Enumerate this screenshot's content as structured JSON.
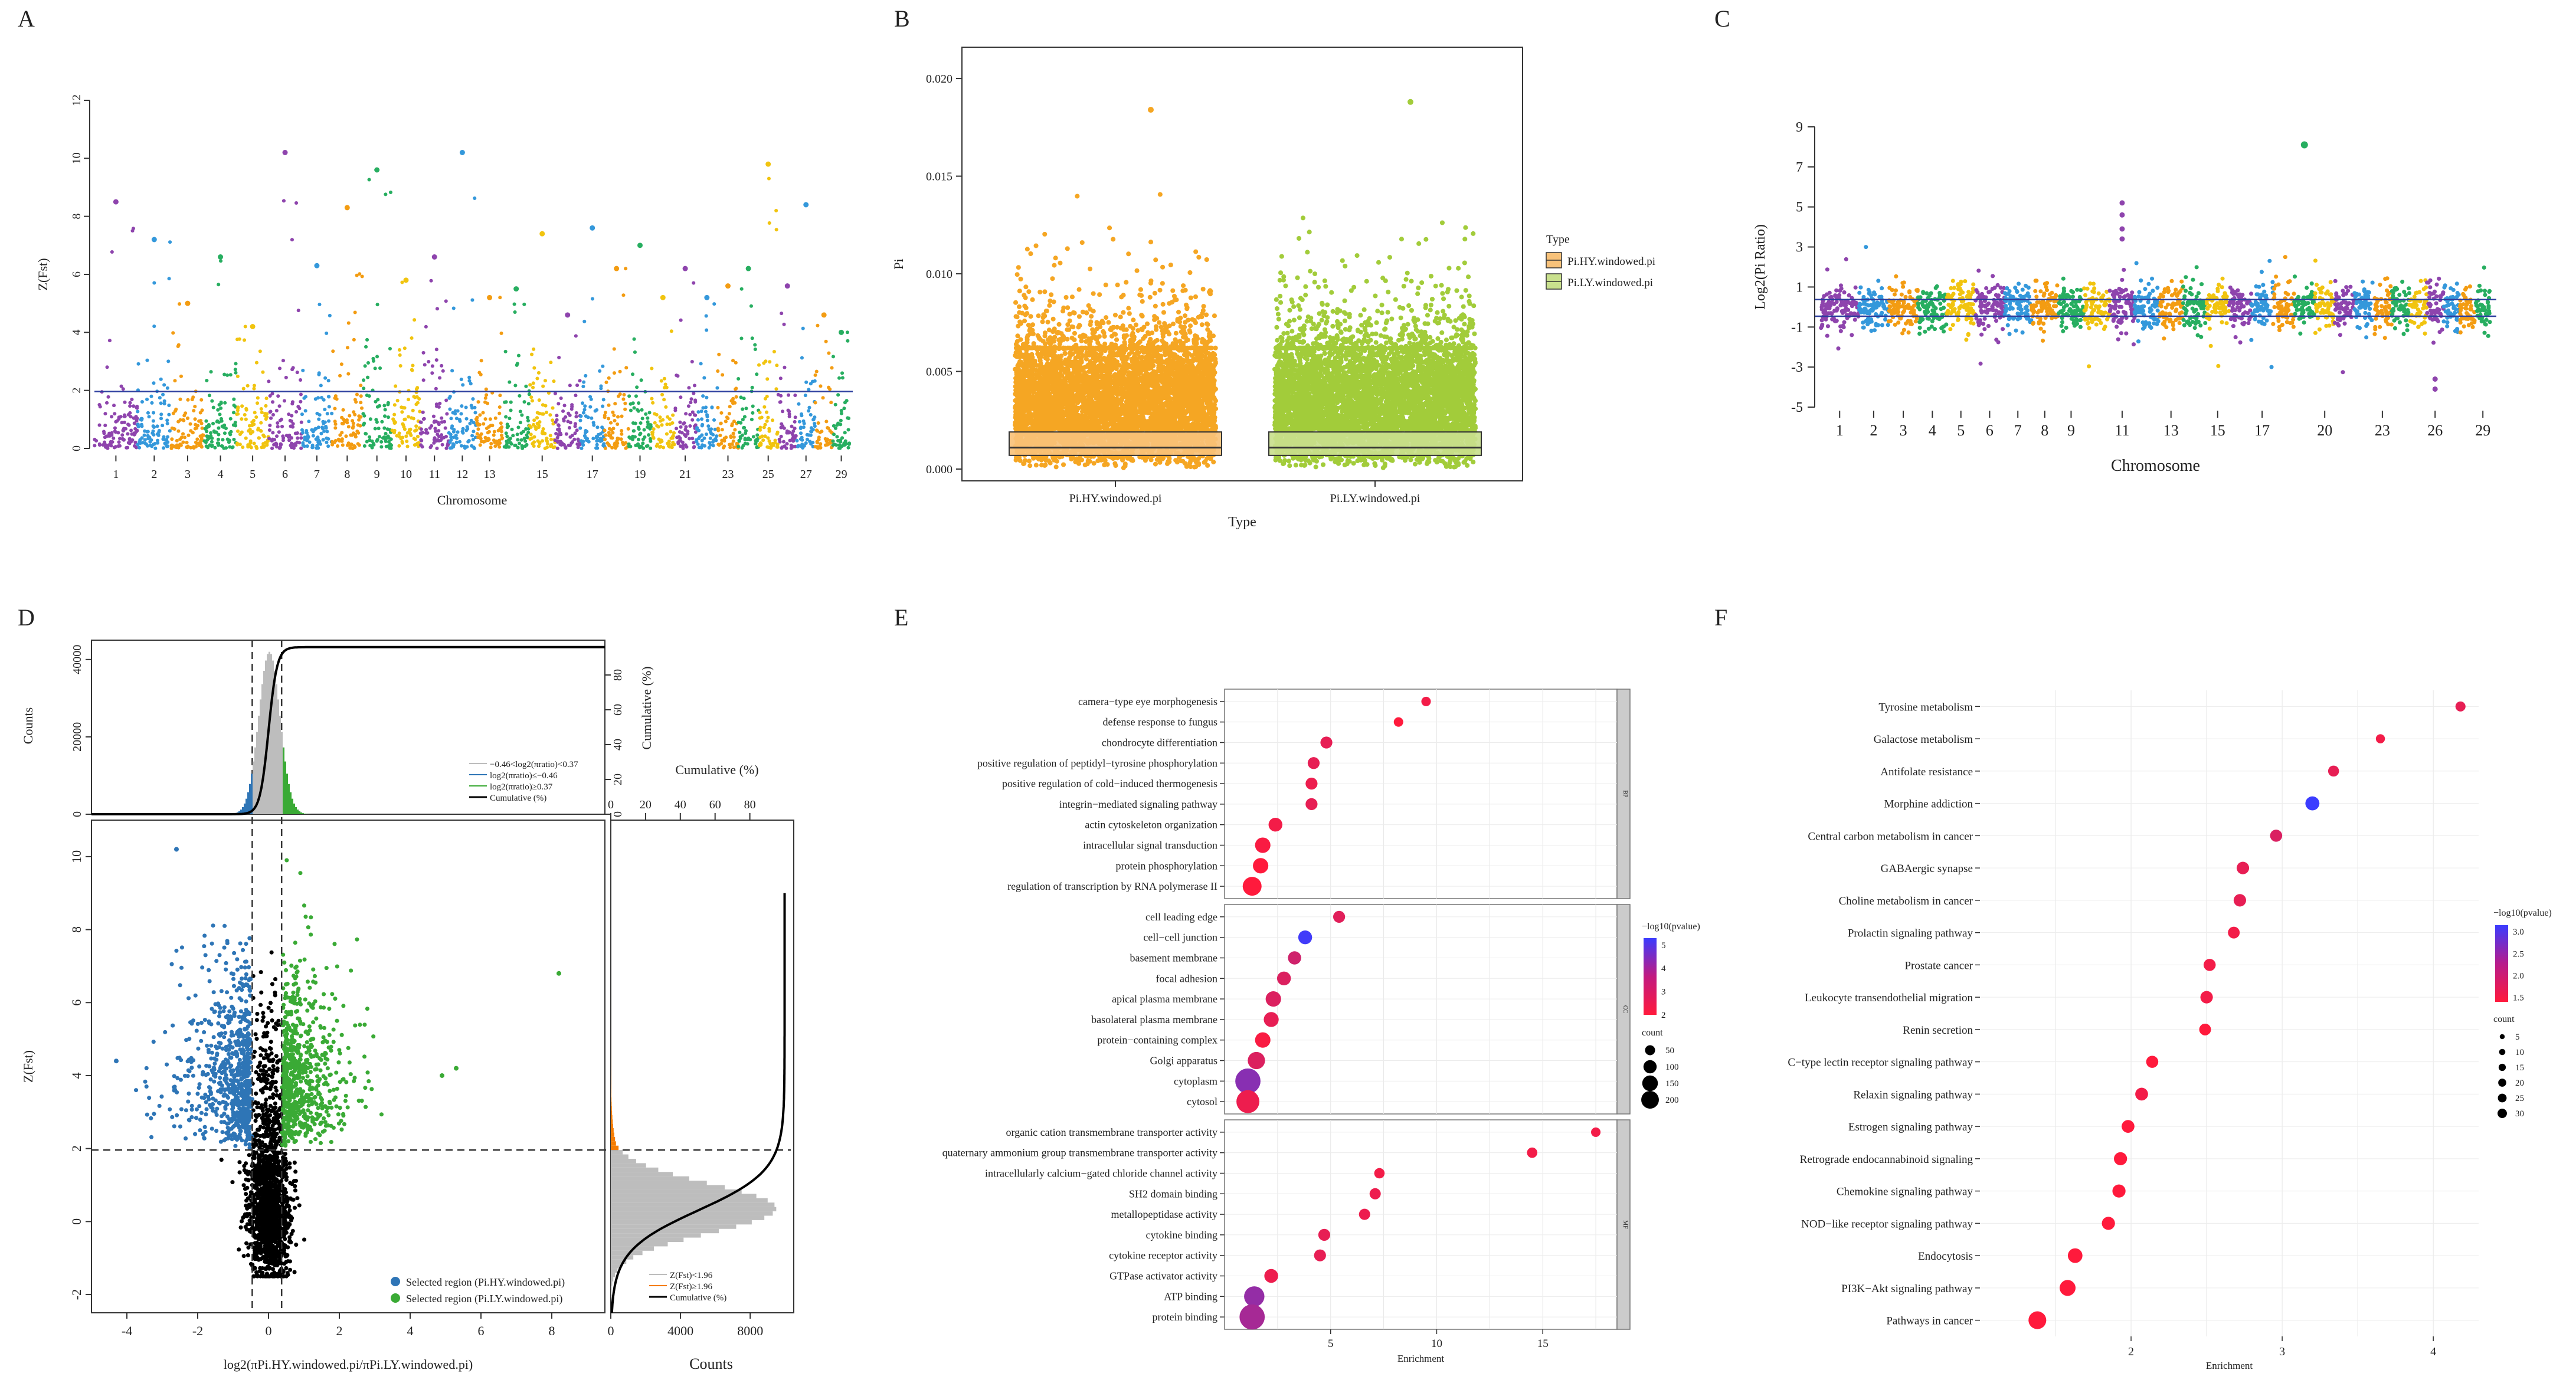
{
  "panel_labels": [
    "A",
    "B",
    "C",
    "D",
    "E",
    "F"
  ],
  "chart_data": [
    {
      "id": "A",
      "type": "scatter",
      "title": "",
      "xlabel": "Chromosome",
      "ylabel": "Z(Fst)",
      "ylim": [
        0,
        12
      ],
      "yticks": [
        0,
        2,
        4,
        6,
        8,
        10,
        12
      ],
      "x_tick_labels": [
        "1",
        "2",
        "3",
        "4",
        "5",
        "6",
        "7",
        "8",
        "9",
        "10",
        "11",
        "12",
        "13",
        "15",
        "17",
        "19",
        "21",
        "23",
        "25",
        "27",
        "29"
      ],
      "chromosomes": 29,
      "threshold": 1.96,
      "palette": [
        "#8e44ad",
        "#3498db",
        "#f39c12",
        "#27ae60",
        "#f1c40f"
      ],
      "peaks": [
        8.5,
        7.2,
        5.0,
        6.6,
        4.2,
        10.2,
        6.3,
        8.3,
        9.6,
        5.8,
        6.6,
        10.2,
        5.2,
        5.5,
        7.4,
        4.6,
        7.6,
        6.2,
        7.0,
        5.2,
        6.2,
        5.2,
        5.6,
        6.2,
        9.8,
        5.6,
        8.4,
        4.6,
        4.0
      ]
    },
    {
      "id": "B",
      "type": "box",
      "title": "",
      "xlabel": "Type",
      "ylabel": "Pi",
      "ylim": [
        0,
        0.021
      ],
      "yticks": [
        0.0,
        0.005,
        0.01,
        0.015,
        0.02
      ],
      "ytick_labels": [
        "0.000",
        "0.005",
        "0.010",
        "0.015",
        "0.020"
      ],
      "categories": [
        "Pi.HY.windowed.pi",
        "Pi.LY.windowed.pi"
      ],
      "colors": [
        "#f5a623",
        "#a2cc3a"
      ],
      "box_fill": [
        "#f8c27a",
        "#c9e08d"
      ],
      "boxes": [
        {
          "q1": 0.0007,
          "median": 0.0011,
          "q3": 0.0019,
          "max_point": 0.0184
        },
        {
          "q1": 0.0007,
          "median": 0.0011,
          "q3": 0.0019,
          "max_point": 0.0188
        }
      ],
      "legend_title": "Type",
      "legend_items": [
        "Pi.HY.windowed.pi",
        "Pi.LY.windowed.pi"
      ]
    },
    {
      "id": "C",
      "type": "scatter",
      "title": "",
      "xlabel": "Chromosome",
      "ylabel": "Log2(Pi Ratio)",
      "ylim": [
        -5,
        9
      ],
      "yticks": [
        -5,
        -3,
        -1,
        1,
        3,
        5,
        7,
        9
      ],
      "x_tick_labels": [
        "1",
        "2",
        "3",
        "4",
        "5",
        "6",
        "7",
        "8",
        "9",
        "11",
        "13",
        "15",
        "17",
        "20",
        "23",
        "26",
        "29"
      ],
      "x_tick_chroms": [
        1,
        2,
        3,
        4,
        5,
        6,
        7,
        8,
        9,
        11,
        13,
        15,
        17,
        20,
        23,
        26,
        29
      ],
      "chromosomes": 29,
      "thresholds": [
        0.37,
        -0.46
      ],
      "outlier": {
        "chrom": 19,
        "value": 8.1
      },
      "palette": [
        "#8e44ad",
        "#3498db",
        "#f39c12",
        "#27ae60",
        "#f1c40f"
      ]
    },
    {
      "id": "D",
      "type": "scatter",
      "title": "",
      "xlabel": "log2(πPi.HY.windowed.pi/πPi.LY.windowed.pi)",
      "ylabel": "Z(Fst)",
      "xlim": [
        -5,
        9.5
      ],
      "ylim": [
        -2.5,
        11
      ],
      "xticks": [
        -4,
        -2,
        0,
        2,
        4,
        6,
        8
      ],
      "yticks": [
        -2,
        0,
        2,
        4,
        6,
        8,
        10
      ],
      "vlines": [
        -0.46,
        0.37
      ],
      "hline": 1.96,
      "top_hist": {
        "ylabel": "Counts",
        "yticks": [
          0,
          20000,
          40000
        ],
        "ylabel_right": "Cumulative (%)",
        "yticks_right": [
          0,
          20,
          40,
          60,
          80
        ]
      },
      "right_hist": {
        "xlabel": "Counts",
        "xticks": [
          0,
          4000,
          8000
        ],
        "xlabel_top": "Cumulative (%)",
        "xticks_top": [
          0,
          20,
          40,
          60,
          80
        ]
      },
      "top_legend": [
        "−0.46<log2(πratio)<0.37",
        "log2(πratio)≤−0.46",
        "log2(πratio)≥0.37",
        "Cumulative (%)"
      ],
      "right_legend": [
        "Z(Fst)<1.96",
        "Z(Fst)≥1.96",
        "Cumulative (%)"
      ],
      "scatter_legend": [
        "Selected region (Pi.HY.windowed.pi)",
        "Selected region (Pi.LY.windowed.pi)"
      ],
      "colors": {
        "hy": "#2e75b6",
        "ly": "#3aaa35",
        "other": "#000000",
        "orange": "#f57c00"
      }
    },
    {
      "id": "E",
      "type": "dot",
      "title": "",
      "xlabel": "Enrichment",
      "xlim": [
        0,
        18.5
      ],
      "xticks": [
        5,
        10,
        15
      ],
      "facets": [
        {
          "name": "BP",
          "terms": [
            {
              "label": "camera−type eye morphogenesis",
              "x": 9.5,
              "count": 15,
              "p": 2.2
            },
            {
              "label": "defense response to fungus",
              "x": 8.2,
              "count": 15,
              "p": 2.0
            },
            {
              "label": "chondrocyte differentiation",
              "x": 4.8,
              "count": 30,
              "p": 2.4
            },
            {
              "label": "positive regulation of peptidyl−tyrosine phosphorylation",
              "x": 4.2,
              "count": 30,
              "p": 2.4
            },
            {
              "label": "positive regulation of cold−induced thermogenesis",
              "x": 4.1,
              "count": 30,
              "p": 2.3
            },
            {
              "label": "integrin−mediated signaling pathway",
              "x": 4.1,
              "count": 30,
              "p": 2.4
            },
            {
              "label": "actin cytoskeleton organization",
              "x": 2.4,
              "count": 45,
              "p": 2.2
            },
            {
              "label": "intracellular signal transduction",
              "x": 1.8,
              "count": 60,
              "p": 2.1
            },
            {
              "label": "protein phosphorylation",
              "x": 1.7,
              "count": 60,
              "p": 2.0
            },
            {
              "label": "regulation of transcription by RNA polymerase II",
              "x": 1.3,
              "count": 100,
              "p": 2.0
            }
          ]
        },
        {
          "name": "CC",
          "terms": [
            {
              "label": "cell leading edge",
              "x": 5.4,
              "count": 30,
              "p": 2.5
            },
            {
              "label": "cell−cell junction",
              "x": 3.8,
              "count": 45,
              "p": 5.2
            },
            {
              "label": "basement membrane",
              "x": 3.3,
              "count": 40,
              "p": 2.8
            },
            {
              "label": "focal adhesion",
              "x": 2.8,
              "count": 45,
              "p": 2.6
            },
            {
              "label": "apical plasma membrane",
              "x": 2.3,
              "count": 60,
              "p": 2.6
            },
            {
              "label": "basolateral plasma membrane",
              "x": 2.2,
              "count": 55,
              "p": 2.4
            },
            {
              "label": "protein−containing complex",
              "x": 1.8,
              "count": 60,
              "p": 2.1
            },
            {
              "label": "Golgi apparatus",
              "x": 1.5,
              "count": 80,
              "p": 2.6
            },
            {
              "label": "cytoplasm",
              "x": 1.1,
              "count": 200,
              "p": 4.0
            },
            {
              "label": "cytosol",
              "x": 1.1,
              "count": 160,
              "p": 2.3
            }
          ]
        },
        {
          "name": "MF",
          "terms": [
            {
              "label": "organic cation transmembrane transporter activity",
              "x": 17.5,
              "count": 15,
              "p": 2.2
            },
            {
              "label": "quaternary ammonium group transmembrane transporter activity",
              "x": 14.5,
              "count": 20,
              "p": 2.2
            },
            {
              "label": "intracellularly calcium−gated chloride channel activity",
              "x": 7.3,
              "count": 20,
              "p": 2.2
            },
            {
              "label": "SH2 domain binding",
              "x": 7.1,
              "count": 25,
              "p": 2.3
            },
            {
              "label": "metallopeptidase activity",
              "x": 6.6,
              "count": 25,
              "p": 2.3
            },
            {
              "label": "cytokine binding",
              "x": 4.7,
              "count": 30,
              "p": 2.4
            },
            {
              "label": "cytokine receptor activity",
              "x": 4.5,
              "count": 30,
              "p": 2.4
            },
            {
              "label": "GTPase activator activity",
              "x": 2.2,
              "count": 45,
              "p": 2.3
            },
            {
              "label": "ATP binding",
              "x": 1.4,
              "count": 120,
              "p": 3.8
            },
            {
              "label": "protein binding",
              "x": 1.3,
              "count": 200,
              "p": 3.5
            }
          ]
        }
      ],
      "color_legend": {
        "title": "−log10(pvalue)",
        "ticks": [
          2,
          3,
          4,
          5
        ]
      },
      "size_legend": {
        "title": "count",
        "values": [
          50,
          100,
          150,
          200
        ]
      }
    },
    {
      "id": "F",
      "type": "dot",
      "title": "",
      "xlabel": "Enrichment",
      "xlim": [
        1.0,
        4.3
      ],
      "xticks": [
        2,
        3,
        4
      ],
      "terms": [
        {
          "label": "Tyrosine metabolism",
          "x": 4.18,
          "count": 7,
          "p": 1.7
        },
        {
          "label": "Galactose metabolism",
          "x": 3.65,
          "count": 5,
          "p": 1.6
        },
        {
          "label": "Antifolate resistance",
          "x": 3.34,
          "count": 9,
          "p": 1.7
        },
        {
          "label": "Morphine addiction",
          "x": 3.2,
          "count": 18,
          "p": 3.1
        },
        {
          "label": "Central carbon metabolism in cancer",
          "x": 2.96,
          "count": 12,
          "p": 1.8
        },
        {
          "label": "GABAergic synapse",
          "x": 2.74,
          "count": 13,
          "p": 1.7
        },
        {
          "label": "Choline metabolism in cancer",
          "x": 2.72,
          "count": 13,
          "p": 1.7
        },
        {
          "label": "Prolactin signaling pathway",
          "x": 2.68,
          "count": 11,
          "p": 1.6
        },
        {
          "label": "Prostate cancer",
          "x": 2.52,
          "count": 12,
          "p": 1.6
        },
        {
          "label": "Leukocyte transendothelial migration",
          "x": 2.5,
          "count": 13,
          "p": 1.6
        },
        {
          "label": "Renin secretion",
          "x": 2.49,
          "count": 11,
          "p": 1.5
        },
        {
          "label": "C−type lectin receptor signaling pathway",
          "x": 2.14,
          "count": 12,
          "p": 1.5
        },
        {
          "label": "Relaxin signaling pathway",
          "x": 2.07,
          "count": 14,
          "p": 1.6
        },
        {
          "label": "Estrogen signaling pathway",
          "x": 1.98,
          "count": 14,
          "p": 1.5
        },
        {
          "label": "Retrograde endocannabinoid signaling",
          "x": 1.93,
          "count": 15,
          "p": 1.5
        },
        {
          "label": "Chemokine signaling pathway",
          "x": 1.92,
          "count": 15,
          "p": 1.5
        },
        {
          "label": "NOD−like receptor signaling pathway",
          "x": 1.85,
          "count": 15,
          "p": 1.5
        },
        {
          "label": "Endocytosis",
          "x": 1.63,
          "count": 20,
          "p": 1.5
        },
        {
          "label": "PI3K−Akt signaling pathway",
          "x": 1.58,
          "count": 25,
          "p": 1.5
        },
        {
          "label": "Pathways in cancer",
          "x": 1.38,
          "count": 33,
          "p": 1.5
        }
      ],
      "color_legend": {
        "title": "−log10(pvalue)",
        "ticks": [
          1.5,
          2.0,
          2.5,
          3.0
        ]
      },
      "size_legend": {
        "title": "count",
        "values": [
          5,
          10,
          15,
          20,
          25,
          30
        ]
      }
    }
  ]
}
